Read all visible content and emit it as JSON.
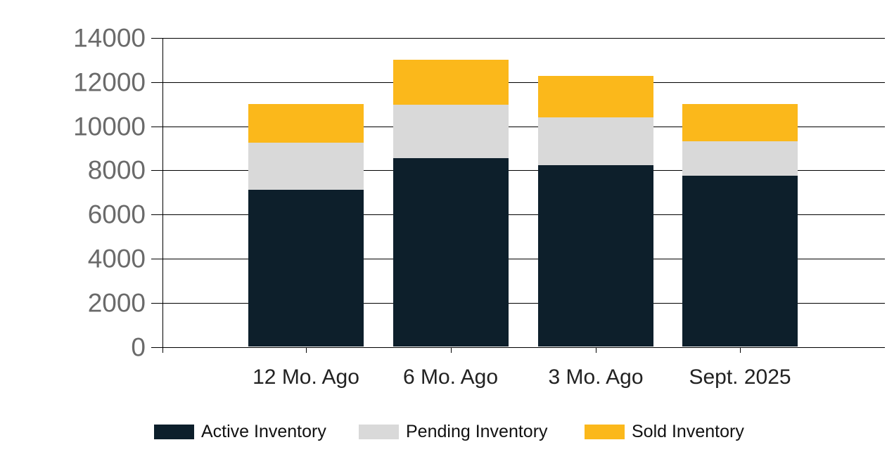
{
  "chart_data": {
    "type": "bar",
    "stacked": true,
    "categories": [
      "12 Mo. Ago",
      "6 Mo. Ago",
      "3 Mo. Ago",
      "Sept. 2025"
    ],
    "series": [
      {
        "name": "Active Inventory",
        "color": "#0d1f2b",
        "values": [
          7130,
          8540,
          8240,
          7760
        ]
      },
      {
        "name": "Pending Inventory",
        "color": "#d9d9d9",
        "values": [
          2120,
          2430,
          2160,
          1560
        ]
      },
      {
        "name": "Sold Inventory",
        "color": "#fbb81b",
        "values": [
          1750,
          2030,
          1880,
          1680
        ]
      }
    ],
    "stack_totals": [
      11000,
      13000,
      12280,
      11000
    ],
    "title": "",
    "xlabel": "",
    "ylabel": "",
    "ylim": [
      0,
      14000
    ],
    "ytick_step": 2000,
    "yticks": [
      "0",
      "2000",
      "4000",
      "6000",
      "8000",
      "10000",
      "12000",
      "14000"
    ],
    "grid": "horizontal",
    "legend_position": "bottom",
    "axis_color": "#000000",
    "ytick_label_color": "#6a6a6a",
    "xtick_label_color": "#222222",
    "legend_text_color": "#111111",
    "background_color": "#ffffff"
  }
}
